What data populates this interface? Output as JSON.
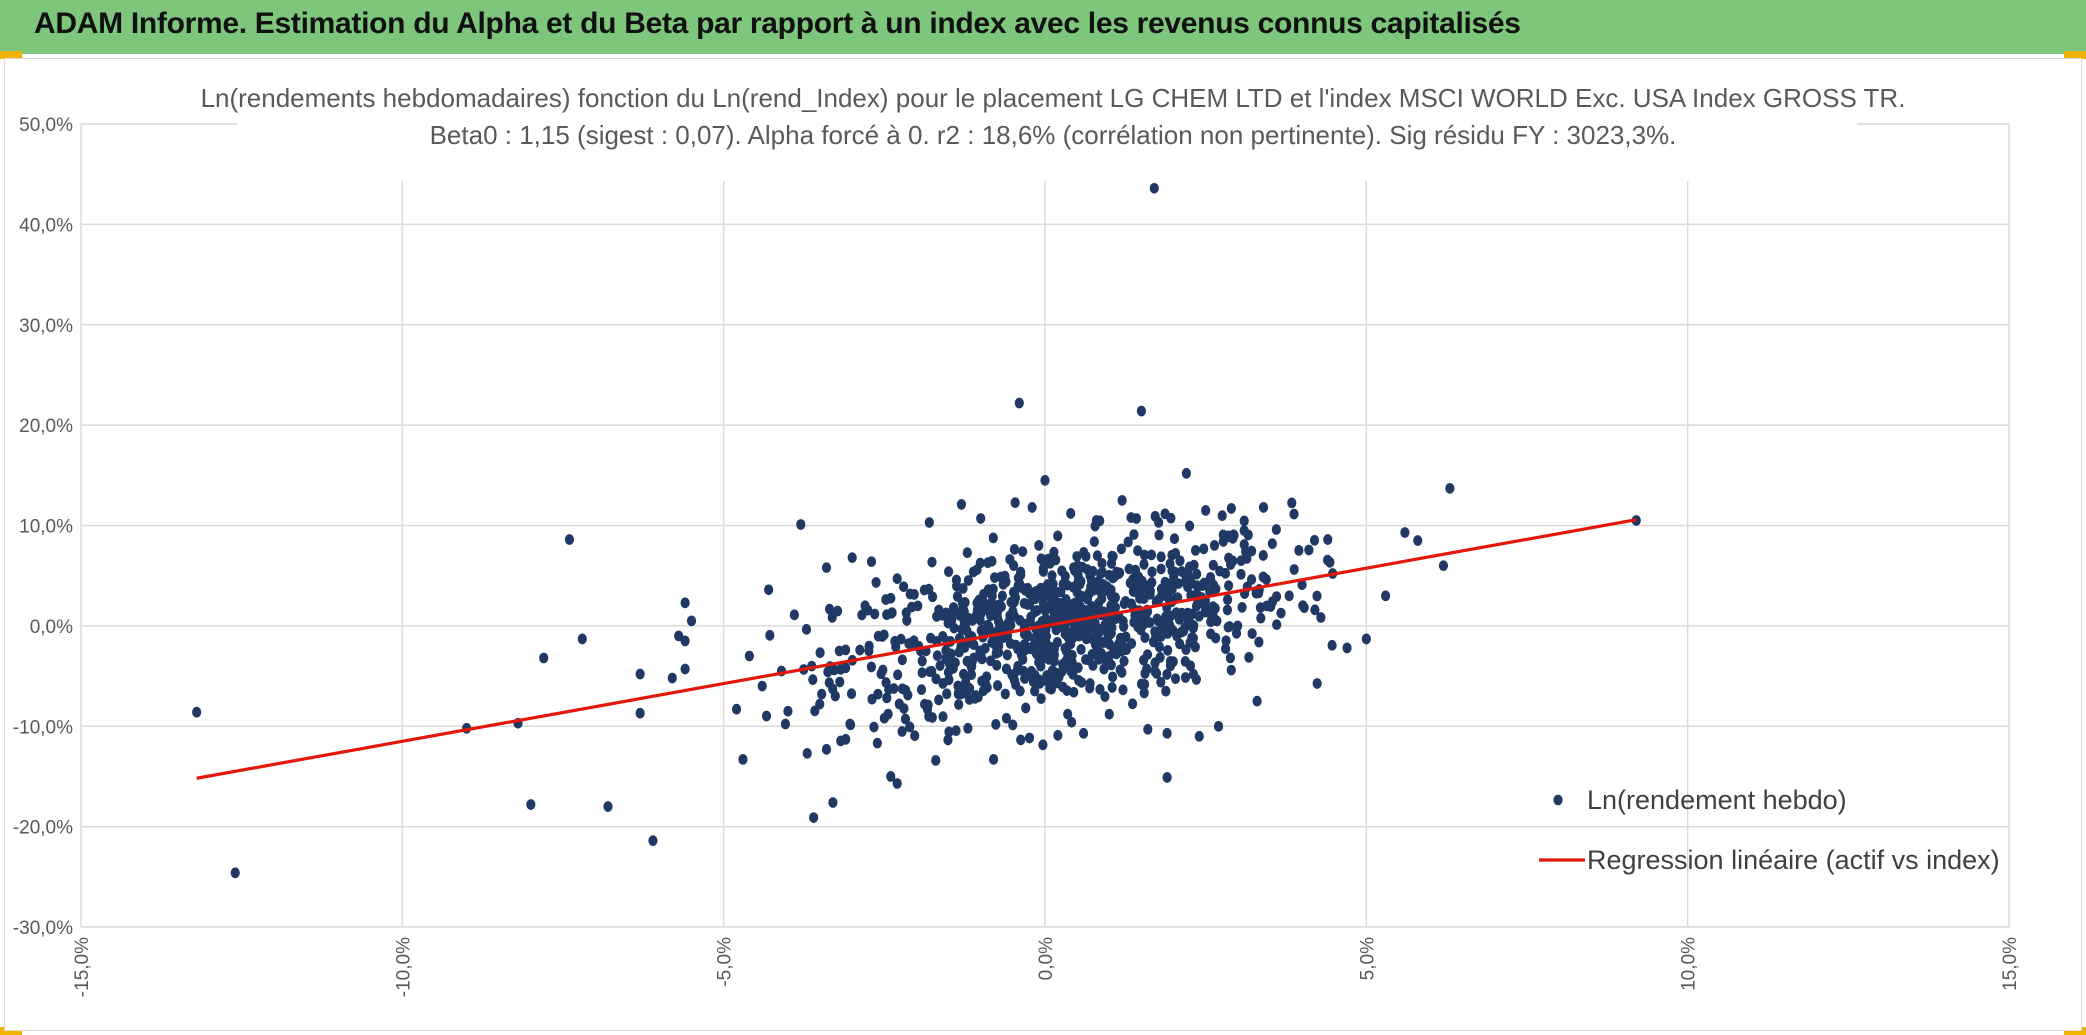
{
  "header": {
    "title": "ADAM Informe. Estimation du Alpha et du Beta par rapport à un index avec les revenus connus capitalisés",
    "bar_color": "#7dc67b",
    "corner_color": "#f0b400"
  },
  "chart_data": {
    "type": "scatter",
    "title_lines": [
      "Ln(rendements hebdomadaires) fonction du Ln(rend_Index) pour le placement LG CHEM LTD et l'index MSCI WORLD Exc. USA Index GROSS TR.",
      "Beta0 : 1,15 (sigest : 0,07). Alpha forcé à 0. r2 : 18,6% (corrélation non pertinente). Sig résidu FY : 3023,3%."
    ],
    "xlim": [
      -0.15,
      0.15
    ],
    "ylim": [
      -0.3,
      0.5
    ],
    "x_ticks": [
      -0.15,
      -0.1,
      -0.05,
      0.0,
      0.05,
      0.1,
      0.15
    ],
    "y_ticks": [
      -0.3,
      -0.2,
      -0.1,
      0.0,
      0.1,
      0.2,
      0.3,
      0.4,
      0.5
    ],
    "x_tick_labels": [
      "-15,0%",
      "-10,0%",
      "-5,0%",
      "0,0%",
      "5,0%",
      "10,0%",
      "15,0%"
    ],
    "y_tick_labels": [
      "-30,0%",
      "-20,0%",
      "-10,0%",
      "0,0%",
      "10,0%",
      "20,0%",
      "30,0%",
      "40,0%",
      "50,0%"
    ],
    "grid": true,
    "legend_position": "bottom-right",
    "series": [
      {
        "name": "Ln(rendement hebdo)",
        "kind": "scatter",
        "color": "#203864",
        "points": [
          [
            -0.132,
            -0.086
          ],
          [
            -0.126,
            -0.246
          ],
          [
            -0.09,
            -0.102
          ],
          [
            -0.082,
            -0.097
          ],
          [
            -0.08,
            -0.178
          ],
          [
            -0.078,
            -0.032
          ],
          [
            -0.074,
            0.086
          ],
          [
            -0.072,
            -0.013
          ],
          [
            -0.068,
            -0.18
          ],
          [
            -0.063,
            -0.048
          ],
          [
            -0.063,
            -0.087
          ],
          [
            -0.061,
            -0.214
          ],
          [
            -0.058,
            -0.052
          ],
          [
            -0.057,
            -0.01
          ],
          [
            -0.056,
            0.023
          ],
          [
            -0.056,
            -0.015
          ],
          [
            -0.056,
            -0.043
          ],
          [
            -0.055,
            0.005
          ],
          [
            -0.048,
            -0.083
          ],
          [
            -0.047,
            -0.133
          ],
          [
            -0.046,
            -0.03
          ],
          [
            -0.044,
            -0.06
          ],
          [
            -0.043,
            0.036
          ],
          [
            -0.041,
            -0.045
          ],
          [
            -0.04,
            -0.085
          ],
          [
            -0.039,
            0.011
          ],
          [
            -0.038,
            0.101
          ],
          [
            -0.037,
            -0.127
          ],
          [
            -0.036,
            -0.191
          ],
          [
            -0.034,
            -0.123
          ],
          [
            -0.034,
            0.058
          ],
          [
            -0.033,
            -0.176
          ],
          [
            -0.032,
            -0.025
          ],
          [
            -0.031,
            -0.113
          ],
          [
            -0.03,
            0.068
          ],
          [
            -0.028,
            0.02
          ],
          [
            -0.027,
            0.064
          ],
          [
            -0.026,
            -0.068
          ],
          [
            -0.025,
            -0.092
          ],
          [
            -0.023,
            0.047
          ],
          [
            -0.024,
            -0.15
          ],
          [
            -0.023,
            -0.157
          ],
          [
            -0.022,
            0.039
          ],
          [
            -0.018,
            0.103
          ],
          [
            -0.017,
            -0.134
          ],
          [
            -0.015,
            0.054
          ],
          [
            -0.013,
            0.121
          ],
          [
            -0.012,
            -0.102
          ],
          [
            -0.01,
            0.107
          ],
          [
            -0.008,
            -0.133
          ],
          [
            -0.006,
            -0.092
          ],
          [
            -0.004,
            0.222
          ],
          [
            -0.002,
            0.118
          ],
          [
            0.0,
            0.145
          ],
          [
            0.002,
            -0.109
          ],
          [
            0.004,
            0.112
          ],
          [
            0.006,
            -0.107
          ],
          [
            0.008,
            0.105
          ],
          [
            0.01,
            -0.088
          ],
          [
            0.012,
            0.125
          ],
          [
            0.015,
            0.214
          ],
          [
            0.016,
            -0.103
          ],
          [
            0.017,
            0.436
          ],
          [
            0.019,
            -0.107
          ],
          [
            0.019,
            -0.151
          ],
          [
            0.022,
            0.152
          ],
          [
            0.024,
            -0.11
          ],
          [
            0.025,
            0.115
          ],
          [
            0.027,
            -0.1
          ],
          [
            0.029,
            0.117
          ],
          [
            0.031,
            0.081
          ],
          [
            0.033,
            -0.075
          ],
          [
            0.034,
            0.118
          ],
          [
            0.036,
            0.096
          ],
          [
            0.038,
            0.03
          ],
          [
            0.04,
            0.041
          ],
          [
            0.042,
            0.016
          ],
          [
            0.044,
            0.086
          ],
          [
            0.047,
            -0.022
          ],
          [
            0.05,
            -0.013
          ],
          [
            0.053,
            0.03
          ],
          [
            0.056,
            0.093
          ],
          [
            0.058,
            0.085
          ],
          [
            0.062,
            0.06
          ],
          [
            0.063,
            0.137
          ],
          [
            0.092,
            0.105
          ]
        ],
        "cluster": {
          "count": 900,
          "x_mean": 0.003,
          "x_sd": 0.0175,
          "y_mean": 0.0,
          "y_sd": 0.045,
          "correlation": 0.45
        }
      },
      {
        "name": "Regression linéaire (actif vs index)",
        "kind": "line",
        "color": "#e3170a",
        "beta": 1.15,
        "x_range": [
          -0.132,
          0.092
        ]
      }
    ]
  }
}
